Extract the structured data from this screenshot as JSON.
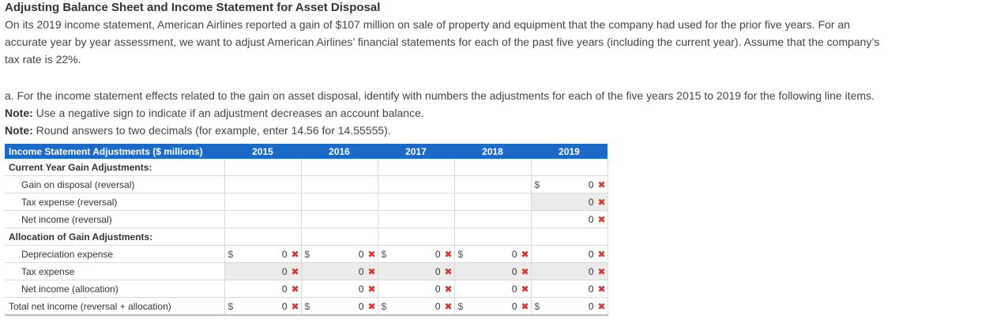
{
  "title": "Adjusting Balance Sheet and Income Statement for Asset Disposal",
  "intro_lines": [
    "On its 2019 income statement, American Airlines reported a gain of $107 million on sale of property and equipment that the company had used for the prior five years. For an",
    "accurate year by year assessment, we want to adjust American Airlines’ financial statements for each of the past five years (including the current year). Assume that the company’s",
    "tax rate is 22%."
  ],
  "question": "a. For the income statement effects related to the gain on asset disposal, identify with numbers the adjustments for each of the five years 2015 to 2019 for the following line items.",
  "note1_label": "Note:",
  "note1_text": " Use a negative sign to indicate if an adjustment decreases an account balance.",
  "note2_label": "Note:",
  "note2_text": " Round answers to two decimals (for example, enter 14.56 for 14.55555).",
  "table": {
    "header_label": "Income Statement Adjustments ($ millions)",
    "years": [
      "2015",
      "2016",
      "2017",
      "2018",
      "2019"
    ],
    "currency_symbol": "$",
    "incorrect_mark": "✖",
    "sections": {
      "current": "Current Year Gain Adjustments:",
      "allocation": "Allocation of Gain Adjustments:"
    },
    "rows": {
      "gain_disposal": {
        "label": "Gain on disposal (reversal)",
        "v2019": "0"
      },
      "tax_expense_rev": {
        "label": "Tax expense (reversal)",
        "v2019": "0"
      },
      "net_income_rev": {
        "label": "Net income (reversal)",
        "v2019": "0"
      },
      "depreciation": {
        "label": "Depreciation expense",
        "values": [
          "0",
          "0",
          "0",
          "0",
          "0"
        ]
      },
      "tax_expense": {
        "label": "Tax expense",
        "values": [
          "0",
          "0",
          "0",
          "0",
          "0"
        ]
      },
      "net_income_alloc": {
        "label": "Net income (allocation)",
        "values": [
          "0",
          "0",
          "0",
          "0",
          "0"
        ]
      },
      "total": {
        "label": "Total net income (reversal + allocation)",
        "values": [
          "0",
          "0",
          "0",
          "0",
          "0"
        ]
      }
    }
  },
  "colors": {
    "header_bg": "#1c6ac8",
    "header_text": "#ffffff",
    "incorrect": "#d9342b",
    "shaded_cell": "#ebebeb"
  }
}
